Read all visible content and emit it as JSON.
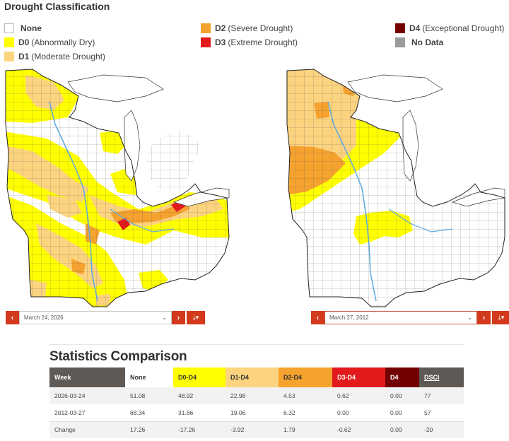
{
  "legend": {
    "title": "Drought Classification",
    "items": [
      {
        "code": "",
        "label": "None",
        "color": "#ffffff"
      },
      {
        "code": "D0",
        "label": "(Abnormally Dry)",
        "color": "#ffff00"
      },
      {
        "code": "D1",
        "label": "(Moderate Drought)",
        "color": "#fcd37f"
      },
      {
        "code": "D2",
        "label": "(Severe Drought)",
        "color": "#f5a22e"
      },
      {
        "code": "D3",
        "label": "(Extreme Drought)",
        "color": "#e31a1c"
      },
      {
        "code": "D4",
        "label": "(Exceptional Drought)",
        "color": "#730000"
      },
      {
        "code": "",
        "label": "No Data",
        "color": "#9b9b9b"
      }
    ]
  },
  "maps": {
    "left": {
      "date": "March 24, 2026"
    },
    "right": {
      "date": "March 27, 2012"
    }
  },
  "controls": {
    "prev_icon": "‹",
    "next_icon": "›",
    "dropdown_icon": "⌄",
    "download_icon": "⤓▾"
  },
  "stats": {
    "title": "Statistics Comparison",
    "headers": [
      "Week",
      "None",
      "D0-D4",
      "D1-D4",
      "D2-D4",
      "D3-D4",
      "D4",
      "DSCI"
    ],
    "rows": [
      [
        "2026-03-24",
        "51.08",
        "48.92",
        "22.98",
        "4.53",
        "0.62",
        "0.00",
        "77"
      ],
      [
        "2012-03-27",
        "68.34",
        "31.66",
        "19.06",
        "6.32",
        "0.00",
        "0.00",
        "57"
      ],
      [
        "Change",
        "17.26",
        "-17.26",
        "-3.92",
        "1.79",
        "-0.62",
        "0.00",
        "-20"
      ]
    ]
  },
  "colors": {
    "none": "#ffffff",
    "d0": "#ffff00",
    "d1": "#fcd37f",
    "d2": "#f5a22e",
    "d3": "#e31a1c",
    "d4": "#730000",
    "water": "#5aa8e0",
    "accent": "#d23a1b"
  }
}
